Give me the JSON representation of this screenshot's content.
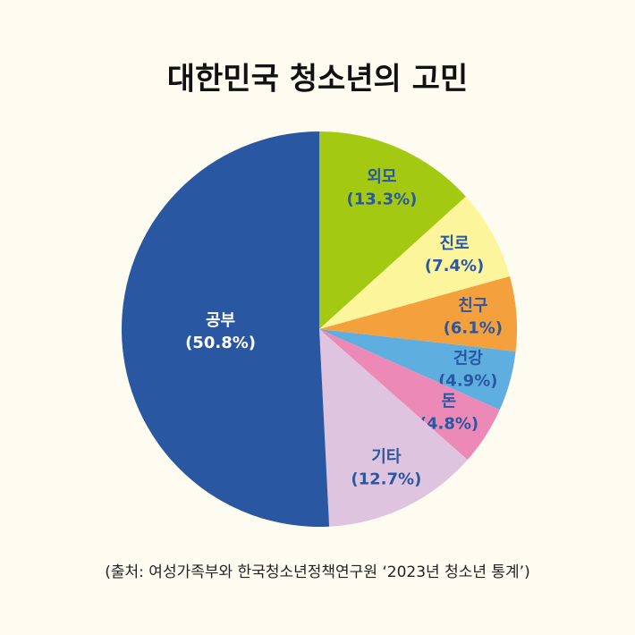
{
  "chart_data": {
    "type": "pie",
    "title": "대한민국 청소년의 고민",
    "categories": [
      "외모",
      "진로",
      "친구",
      "건강",
      "돈",
      "기타",
      "공부"
    ],
    "values": [
      13.3,
      7.4,
      6.1,
      4.9,
      4.8,
      12.7,
      50.8
    ],
    "value_labels": [
      "(13.3%)",
      "(7.4%)",
      "(6.1%)",
      "(4.9%)",
      "(4.8%)",
      "(12.7%)",
      "(50.8%)"
    ],
    "colors": [
      "#a4c912",
      "#fdf59b",
      "#f4a03c",
      "#5eaee0",
      "#ec89b6",
      "#dfc4df",
      "#2a57a2"
    ],
    "source": "(출처: 여성가족부와 한국청소년정책연구원 ‘2023년 청소년 통계’)"
  }
}
